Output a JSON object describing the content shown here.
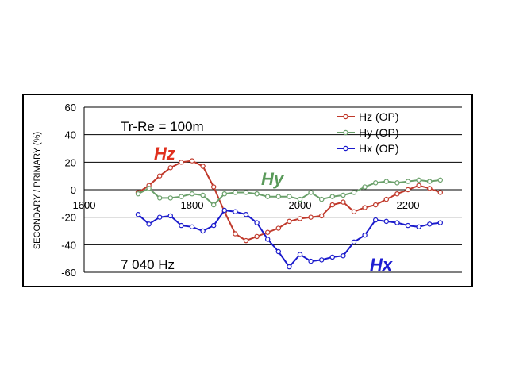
{
  "chart_data": {
    "type": "line",
    "ylabel": "SECONDARY / PRIMARY (%)",
    "xlim": [
      1600,
      2300
    ],
    "ylim": [
      -60,
      60
    ],
    "x_ticks": [
      1600,
      1800,
      2000,
      2200
    ],
    "y_ticks": [
      60,
      40,
      20,
      0,
      -20,
      -40,
      -60
    ],
    "grid": "horizontal",
    "legend": "top-right",
    "annotations": {
      "separation": "Tr-Re = 100m",
      "frequency": "7 040 Hz"
    },
    "curve_labels": [
      {
        "text": "Hz",
        "color": "#e0301e"
      },
      {
        "text": "Hy",
        "color": "#5a9a5a"
      },
      {
        "text": "Hx",
        "color": "#1e1ed2"
      }
    ],
    "series": [
      {
        "name": "Hz (OP)",
        "color": "#c0392b",
        "x": [
          1700,
          1720,
          1740,
          1760,
          1780,
          1800,
          1820,
          1840,
          1860,
          1880,
          1900,
          1920,
          1940,
          1960,
          1980,
          2000,
          2020,
          2040,
          2060,
          2080,
          2100,
          2120,
          2140,
          2160,
          2180,
          2200,
          2220,
          2240,
          2260
        ],
        "y": [
          -2,
          3,
          10,
          16,
          20,
          21,
          17,
          2,
          -16,
          -32,
          -37,
          -34,
          -31,
          -28,
          -23,
          -21,
          -20,
          -19,
          -11,
          -9,
          -16,
          -13,
          -11,
          -7,
          -3,
          0,
          3,
          1,
          -2
        ]
      },
      {
        "name": "Hy (OP)",
        "color": "#6aa06a",
        "x": [
          1700,
          1720,
          1740,
          1760,
          1780,
          1800,
          1820,
          1840,
          1860,
          1880,
          1900,
          1920,
          1940,
          1960,
          1980,
          2000,
          2020,
          2040,
          2060,
          2080,
          2100,
          2120,
          2140,
          2160,
          2180,
          2200,
          2220,
          2240,
          2260
        ],
        "y": [
          -3,
          1,
          -6,
          -6,
          -5,
          -3,
          -4,
          -11,
          -3,
          -2,
          -2,
          -3,
          -5,
          -5,
          -5,
          -7,
          -2,
          -7,
          -5,
          -4,
          -2,
          2,
          5,
          6,
          5,
          6,
          7,
          6,
          7
        ]
      },
      {
        "name": "Hx (OP)",
        "color": "#1a1acc",
        "x": [
          1700,
          1720,
          1740,
          1760,
          1780,
          1800,
          1820,
          1840,
          1860,
          1880,
          1900,
          1920,
          1940,
          1960,
          1980,
          2000,
          2020,
          2040,
          2060,
          2080,
          2100,
          2120,
          2140,
          2160,
          2180,
          2200,
          2220,
          2240,
          2260
        ],
        "y": [
          -18,
          -25,
          -20,
          -19,
          -26,
          -27,
          -30,
          -26,
          -15,
          -16,
          -18,
          -24,
          -36,
          -45,
          -56,
          -47,
          -52,
          -51,
          -49,
          -48,
          -38,
          -33,
          -22,
          -23,
          -24,
          -26,
          -27,
          -25,
          -24
        ]
      }
    ]
  }
}
